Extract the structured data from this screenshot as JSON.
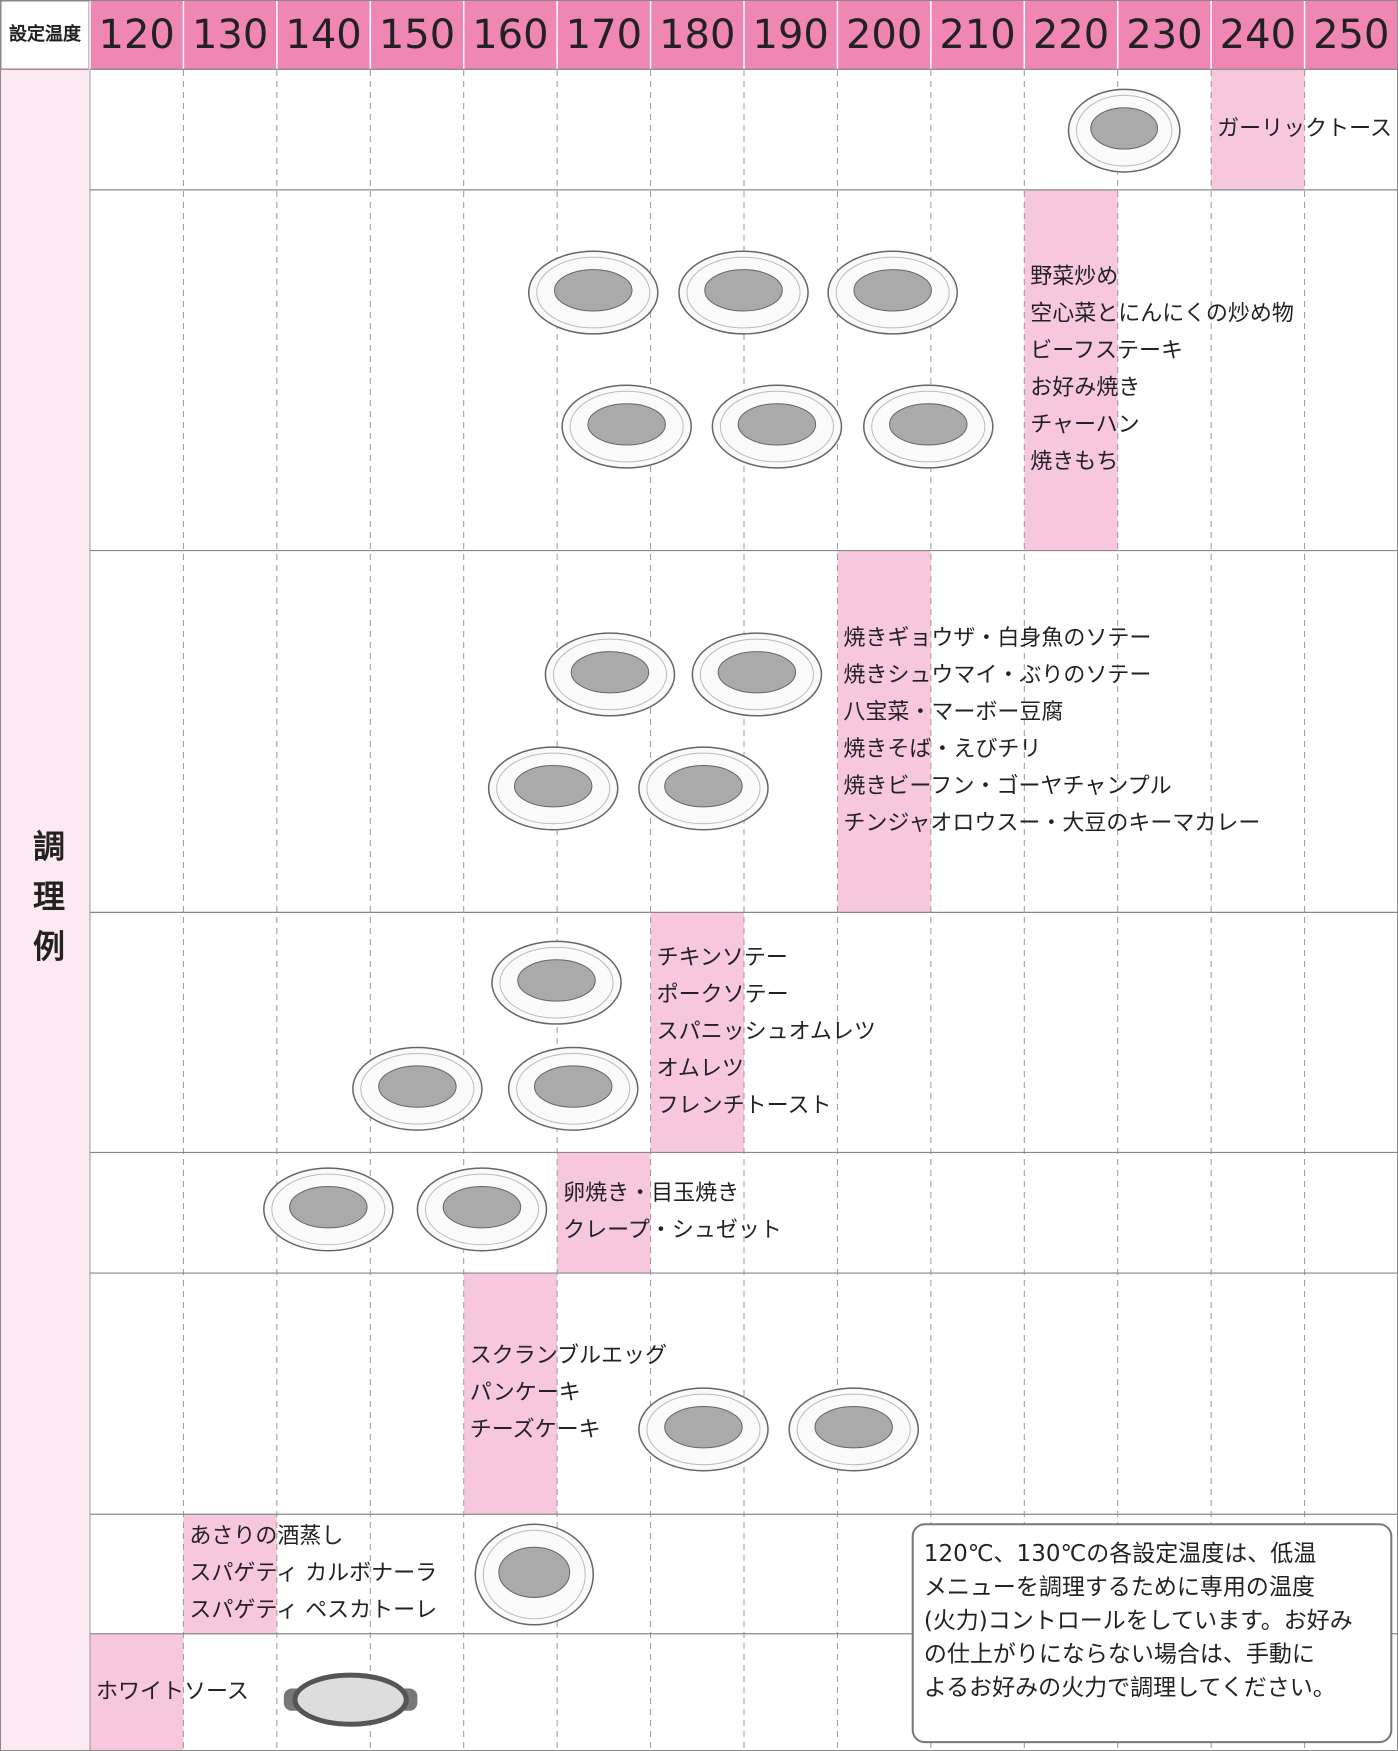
{
  "header": {
    "label": "設定温度",
    "temperatures": [
      120,
      130,
      140,
      150,
      160,
      170,
      180,
      190,
      200,
      210,
      220,
      230,
      240,
      250
    ]
  },
  "side_label": "調理例",
  "rows": [
    {
      "items": [
        "ガーリックトースト"
      ]
    },
    {
      "items": [
        "野菜炒め",
        "空心菜とにんにくの炒め物",
        "ビーフステーキ",
        "お好み焼き",
        "チャーハン",
        "焼きもち"
      ]
    },
    {
      "items": [
        "焼きギョウザ・白身魚のソテー",
        "焼きシュウマイ・ぶりのソテー",
        "八宝菜・マーボー豆腐",
        "焼きそば・えびチリ",
        "焼きビーフン・ゴーヤチャンプル",
        "チンジャオロウスー・大豆のキーマカレー"
      ]
    },
    {
      "items": [
        "チキンソテー",
        "ポークソテー",
        "スパニッシュオムレツ",
        "オムレツ",
        "フレンチトースト"
      ]
    },
    {
      "items": [
        "卵焼き・目玉焼き",
        "クレープ・シュゼット"
      ]
    },
    {
      "items": [
        "スクランブルエッグ",
        "パンケーキ",
        "チーズケーキ"
      ]
    },
    {
      "items": [
        "あさりの酒蒸し",
        "スパゲティ カルボナーラ",
        "スパゲティ ペスカトーレ"
      ]
    },
    {
      "items": [
        "ホワイトソース"
      ]
    }
  ],
  "note": {
    "lines": [
      "120℃、130℃の各設定温度は、低温",
      "メニューを調理するために専用の温度",
      "(火力)コントロールをしています。お好み",
      "の仕上がりにならない場合は、手動に",
      "よるお好みの火力で調理してください。"
    ]
  }
}
